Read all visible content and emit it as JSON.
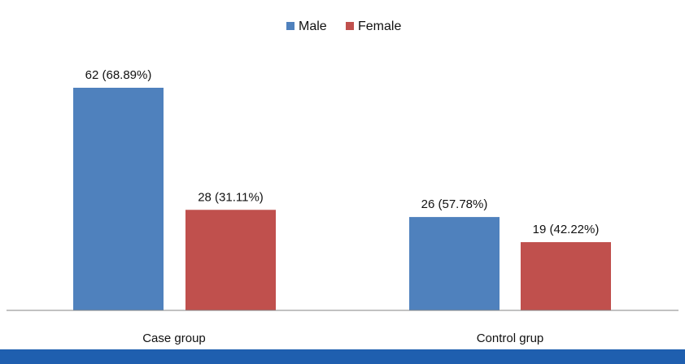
{
  "chart_data": {
    "type": "bar",
    "categories": [
      "Case group",
      "Control grup"
    ],
    "series": [
      {
        "name": "Male",
        "values": [
          62,
          26
        ],
        "labels": [
          "62 (68.89%)",
          "26 (57.78%)"
        ],
        "color": "#4F81BD"
      },
      {
        "name": "Female",
        "values": [
          28,
          19
        ],
        "labels": [
          "28 (31.11%)",
          "19 (42.22%)"
        ],
        "color": "#C0504D"
      }
    ],
    "title": "",
    "xlabel": "",
    "ylabel": "",
    "ylim": [
      0,
      70
    ],
    "legend_position": "top-center",
    "grid": false
  },
  "footer_bar_color": "#1F5FAF"
}
